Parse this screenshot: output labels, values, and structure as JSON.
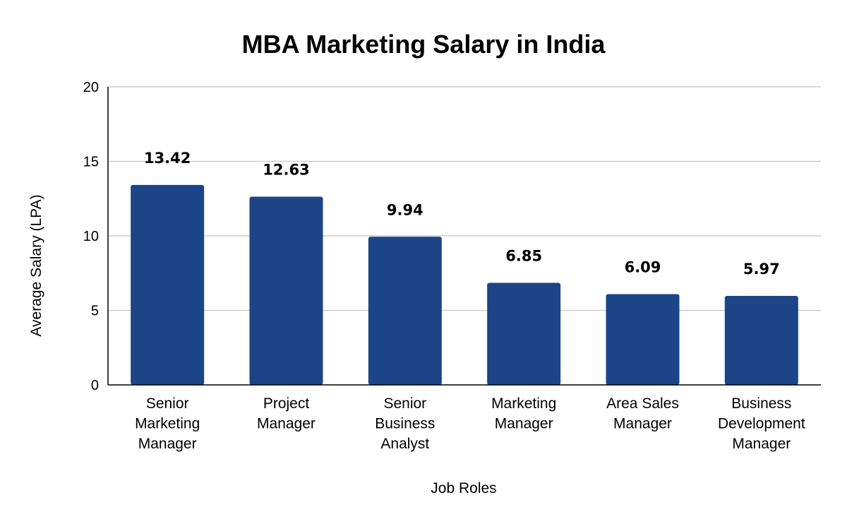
{
  "chart_data": {
    "type": "bar",
    "title": "MBA Marketing Salary in India",
    "xlabel": "Job Roles",
    "ylabel": "Average Salary (LPA)",
    "categories": [
      [
        "Senior",
        "Marketing",
        "Manager"
      ],
      [
        "Project",
        "Manager"
      ],
      [
        "Senior",
        "Business",
        "Analyst"
      ],
      [
        "Marketing",
        "Manager"
      ],
      [
        "Area Sales",
        "Manager"
      ],
      [
        "Business",
        "Development",
        "Manager"
      ]
    ],
    "values": [
      13.42,
      12.63,
      9.94,
      6.85,
      6.09,
      5.97
    ],
    "data_labels": [
      "13.42",
      "12.63",
      "9.94",
      "6.85",
      "6.09",
      "5.97"
    ],
    "ylim": [
      0,
      20
    ],
    "yticks": [
      0,
      5,
      10,
      15,
      20
    ],
    "grid": true,
    "legend": "none",
    "bar_color": "#1c4587"
  }
}
